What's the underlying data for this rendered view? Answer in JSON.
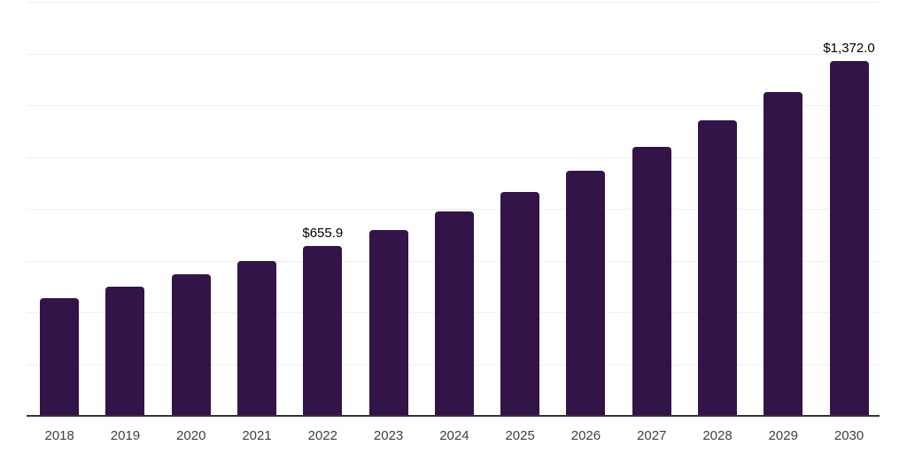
{
  "chart_data": {
    "type": "bar",
    "title": "",
    "xlabel": "",
    "ylabel": "",
    "categories": [
      "2018",
      "2019",
      "2020",
      "2021",
      "2022",
      "2023",
      "2024",
      "2025",
      "2026",
      "2027",
      "2028",
      "2029",
      "2030"
    ],
    "values": [
      453.7,
      497.6,
      545.6,
      598.3,
      655.9,
      719.3,
      788.7,
      864.9,
      948.4,
      1040.0,
      1140.5,
      1250.6,
      1372.0
    ],
    "data_labels": {
      "2022": "$655.9",
      "2030": "$1,372.0"
    },
    "ylim": [
      0,
      1600
    ],
    "gridline_step": 200,
    "grid": true,
    "y_tick_labels_visible": false,
    "legend": "none",
    "colors": {
      "bar": "#331449",
      "gridline": "#efefef",
      "axis_line": "#333333",
      "tick_label": "#404040",
      "data_label": "#000000",
      "background": "#ffffff"
    }
  }
}
